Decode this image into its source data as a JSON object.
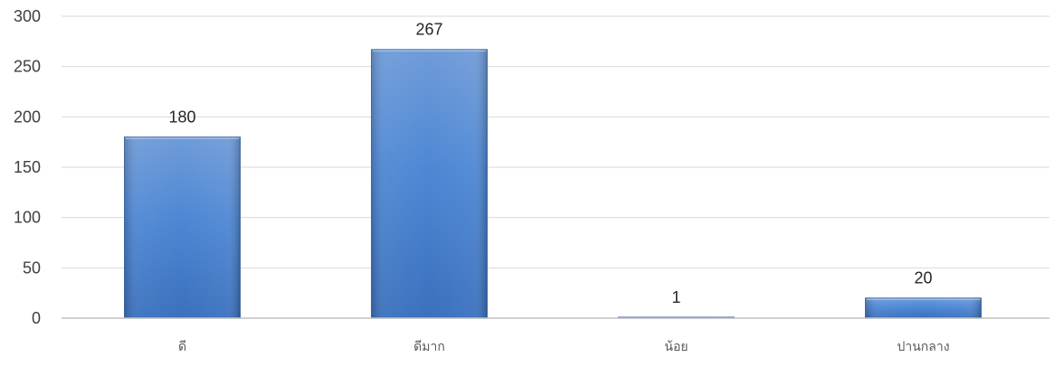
{
  "chart_data": {
    "type": "bar",
    "categories": [
      "ดี",
      "ดีมาก",
      "น้อย",
      "ปานกลาง"
    ],
    "values": [
      180,
      267,
      1,
      20
    ],
    "data_labels": [
      "180",
      "267",
      "1",
      "20"
    ],
    "y_ticks": [
      "0",
      "50",
      "100",
      "150",
      "200",
      "250",
      "300"
    ],
    "ylim": [
      0,
      300
    ],
    "grid": true,
    "legend": "none",
    "colors": {
      "bar_top": "#6f9bd8",
      "bar_mid": "#4d87d4",
      "bar_bottom": "#3a70bd",
      "bar_edge": "#2f5f9f",
      "gridline": "#d9d9d9",
      "axis": "#bfbfbf"
    }
  }
}
